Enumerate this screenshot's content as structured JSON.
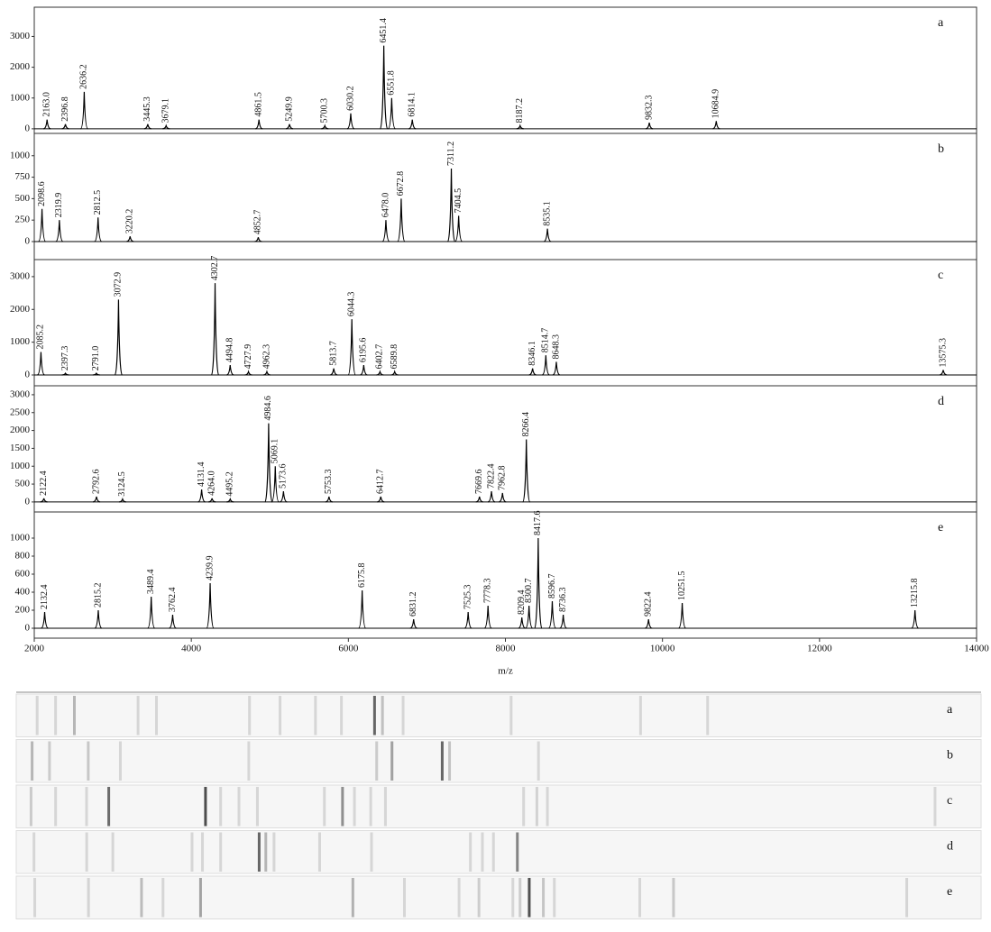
{
  "chart_data": [
    {
      "type": "stem",
      "title": "a",
      "xlim": [
        2000,
        14000
      ],
      "ylim": [
        -150,
        3950
      ],
      "yticks": [
        0,
        1000,
        2000,
        3000
      ],
      "x": [
        2163.0,
        2396.8,
        2636.2,
        3445.3,
        3679.1,
        4861.5,
        5249.9,
        5700.3,
        6030.2,
        6451.4,
        6551.8,
        6814.1,
        8187.2,
        9832.3,
        10684.9
      ],
      "peak_labels": [
        "2163.0",
        "2396.8",
        "2636.2",
        "3445.3",
        "3679.1",
        "4861.5",
        "5249.9",
        "5700.3",
        "6030.2",
        "6451.4",
        "6551.8",
        "6814.1",
        "8187.2",
        "9832.3",
        "10684.9"
      ],
      "values": [
        300,
        150,
        1200,
        150,
        100,
        300,
        150,
        100,
        500,
        2700,
        1000,
        300,
        100,
        200,
        250
      ]
    },
    {
      "type": "stem",
      "title": "b",
      "xlim": [
        2000,
        14000
      ],
      "ylim": [
        -210,
        1260
      ],
      "yticks": [
        0,
        250,
        500,
        750,
        1000
      ],
      "x": [
        2098.6,
        2319.9,
        2812.5,
        3220.2,
        4852.7,
        6478.0,
        6672.8,
        7311.2,
        7404.5,
        8535.1
      ],
      "peak_labels": [
        "2098.6",
        "2319.9",
        "2812.5",
        "3220.2",
        "4852.7",
        "6478.0",
        "6672.8",
        "7311.2",
        "7404.5",
        "8535.1"
      ],
      "values": [
        380,
        250,
        280,
        60,
        50,
        250,
        500,
        850,
        300,
        150
      ]
    },
    {
      "type": "stem",
      "title": "c",
      "xlim": [
        2000,
        14000
      ],
      "ylim": [
        -330,
        3520
      ],
      "yticks": [
        0,
        1000,
        2000,
        3000
      ],
      "x": [
        2085.2,
        2397.3,
        2791.0,
        3072.9,
        4302.7,
        4494.8,
        4727.9,
        4962.3,
        5813.7,
        6044.3,
        6195.6,
        6402.7,
        6589.8,
        8346.1,
        8514.7,
        8648.3,
        13575.3
      ],
      "peak_labels": [
        "2085.2",
        "2397.3",
        "2791.0",
        "3072.9",
        "4302.7",
        "4494.8",
        "4727.9",
        "4962.3",
        "5813.7",
        "6044.3",
        "6195.6",
        "6402.7",
        "6589.8",
        "8346.1",
        "8514.7",
        "8648.3",
        "13575.3"
      ],
      "values": [
        700,
        50,
        50,
        2300,
        2800,
        300,
        100,
        100,
        200,
        1700,
        300,
        100,
        100,
        200,
        600,
        400,
        150
      ]
    },
    {
      "type": "stem",
      "title": "d",
      "xlim": [
        2000,
        14000
      ],
      "ylim": [
        -280,
        3250
      ],
      "yticks": [
        0,
        500,
        1000,
        1500,
        2000,
        2500,
        3000
      ],
      "x": [
        2122.4,
        2792.6,
        3124.5,
        4131.4,
        4264.0,
        4495.2,
        4984.6,
        5069.1,
        5173.6,
        5753.3,
        6412.7,
        7669.6,
        7822.4,
        7962.8,
        8266.4
      ],
      "peak_labels": [
        "2122.4",
        "2792.6",
        "3124.5",
        "4131.4",
        "4264.0",
        "4495.2",
        "4984.6",
        "5069.1",
        "5173.6",
        "5753.3",
        "6412.7",
        "7669.6",
        "7822.4",
        "7962.8",
        "8266.4"
      ],
      "values": [
        100,
        150,
        80,
        350,
        100,
        80,
        2200,
        1000,
        300,
        150,
        150,
        150,
        300,
        250,
        1750
      ]
    },
    {
      "type": "stem",
      "title": "e",
      "xlim": [
        2000,
        14000
      ],
      "ylim": [
        -110,
        1290
      ],
      "yticks": [
        0,
        200,
        400,
        600,
        800,
        1000
      ],
      "xticks": [
        2000,
        4000,
        6000,
        8000,
        10000,
        12000,
        14000
      ],
      "xlabel": "m/z",
      "x": [
        2132.4,
        2815.2,
        3489.4,
        3762.4,
        4239.9,
        6175.8,
        6831.2,
        7525.3,
        7778.3,
        8209.4,
        8300.7,
        8417.6,
        8596.7,
        8736.3,
        9822.4,
        10251.5,
        13215.8
      ],
      "peak_labels": [
        "2132.4",
        "2815.2",
        "3489.4",
        "3762.4",
        "4239.9",
        "6175.8",
        "6831.2",
        "7525.3",
        "7778.3",
        "8209.4",
        "8300.7",
        "8417.6",
        "8596.7",
        "8736.3",
        "9822.4",
        "10251.5",
        "13215.8"
      ],
      "values": [
        180,
        200,
        350,
        150,
        500,
        420,
        100,
        180,
        250,
        120,
        250,
        1000,
        300,
        150,
        100,
        280,
        200
      ]
    },
    {
      "type": "gel",
      "categories": [
        "a",
        "b",
        "c",
        "d",
        "e"
      ]
    }
  ]
}
